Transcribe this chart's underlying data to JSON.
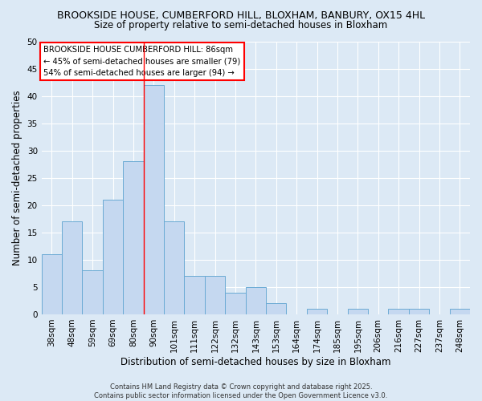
{
  "title_line1": "BROOKSIDE HOUSE, CUMBERFORD HILL, BLOXHAM, BANBURY, OX15 4HL",
  "title_line2": "Size of property relative to semi-detached houses in Bloxham",
  "xlabel": "Distribution of semi-detached houses by size in Bloxham",
  "ylabel": "Number of semi-detached properties",
  "categories": [
    "38sqm",
    "48sqm",
    "59sqm",
    "69sqm",
    "80sqm",
    "90sqm",
    "101sqm",
    "111sqm",
    "122sqm",
    "132sqm",
    "143sqm",
    "153sqm",
    "164sqm",
    "174sqm",
    "185sqm",
    "195sqm",
    "206sqm",
    "216sqm",
    "227sqm",
    "237sqm",
    "248sqm"
  ],
  "values": [
    11,
    17,
    8,
    21,
    28,
    42,
    17,
    7,
    7,
    4,
    5,
    2,
    0,
    1,
    0,
    1,
    0,
    1,
    1,
    0,
    1
  ],
  "bar_color": "#c5d8f0",
  "bar_edge_color": "#6aaad4",
  "background_color": "#dce9f5",
  "grid_color": "#ffffff",
  "annotation_box_text": "BROOKSIDE HOUSE CUMBERFORD HILL: 86sqm\n← 45% of semi-detached houses are smaller (79)\n54% of semi-detached houses are larger (94) →",
  "annotation_box_color": "white",
  "annotation_box_edge_color": "red",
  "red_line_x": 4.5,
  "ylim": [
    0,
    50
  ],
  "yticks": [
    0,
    5,
    10,
    15,
    20,
    25,
    30,
    35,
    40,
    45,
    50
  ],
  "footnote": "Contains HM Land Registry data © Crown copyright and database right 2025.\nContains public sector information licensed under the Open Government Licence v3.0.",
  "title_fontsize": 9,
  "subtitle_fontsize": 8.5,
  "tick_fontsize": 7.5,
  "ylabel_fontsize": 8.5,
  "xlabel_fontsize": 8.5,
  "annotation_fontsize": 7.2,
  "footnote_fontsize": 6.0
}
